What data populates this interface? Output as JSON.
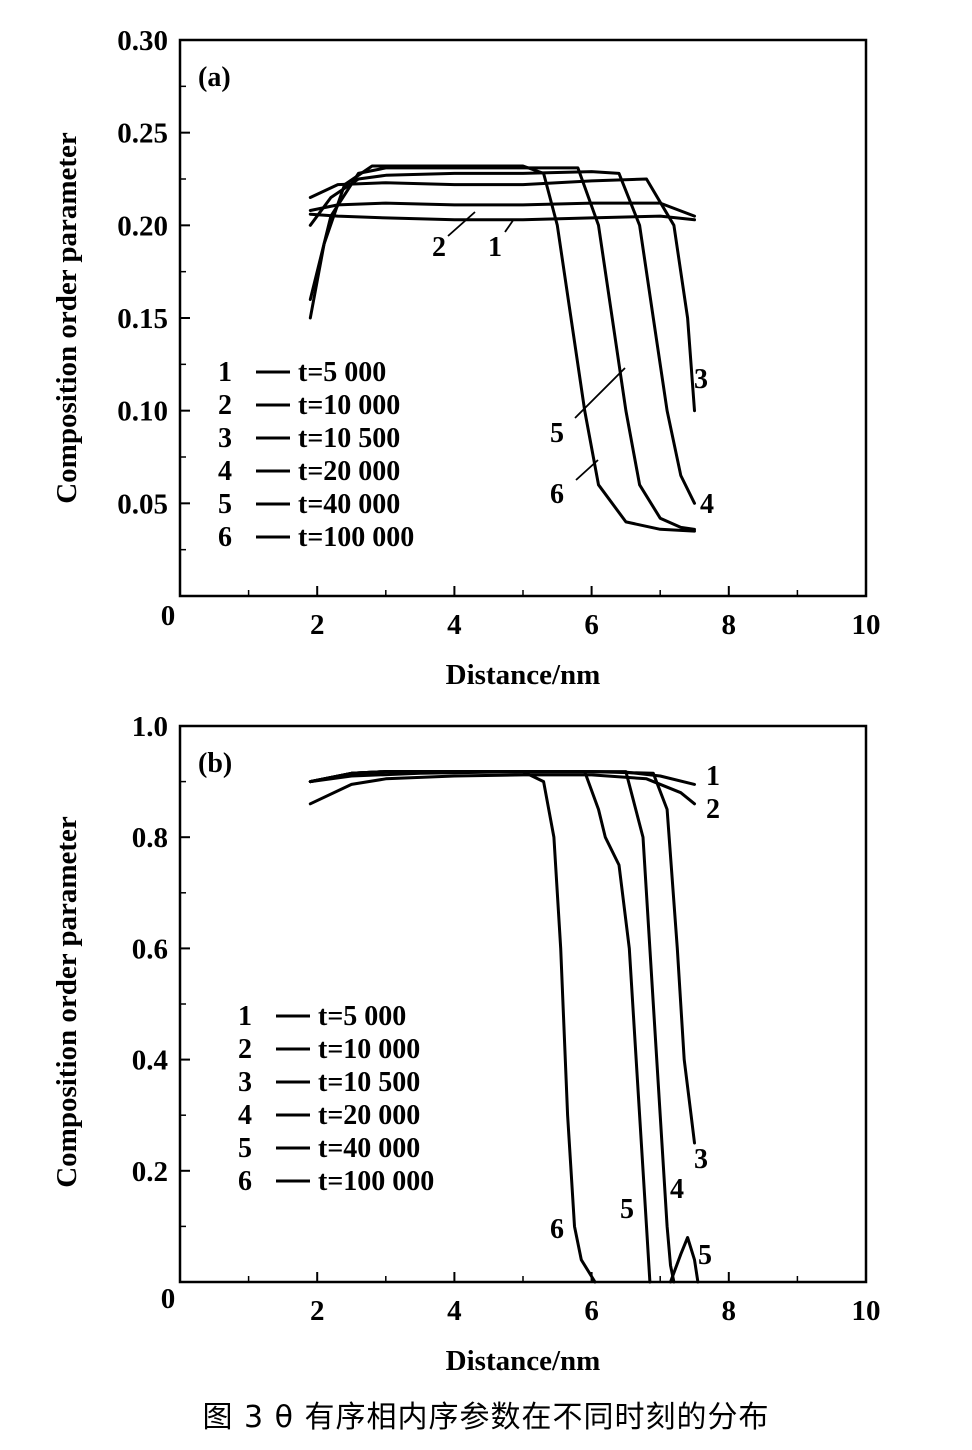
{
  "caption": "图 3    θ 有序相内序参数在不同时刻的分布",
  "chart_data": [
    {
      "type": "line",
      "panel_label": "(a)",
      "xlabel": "Distance/nm",
      "ylabel": "Composition order parameter",
      "xlim": [
        0,
        10
      ],
      "ylim": [
        0,
        0.3
      ],
      "xticks": [
        "0",
        "2",
        "4",
        "6",
        "8",
        "10"
      ],
      "yticks": [
        "0.30",
        "0.25",
        "0.20",
        "0.15",
        "0.10",
        "0.05"
      ],
      "legend_position": "lower-left",
      "legend": [
        {
          "num": "1",
          "text": "t=5 000"
        },
        {
          "num": "2",
          "text": "t=10 000"
        },
        {
          "num": "3",
          "text": "t=10 500"
        },
        {
          "num": "4",
          "text": "t=20 000"
        },
        {
          "num": "5",
          "text": "t=40 000"
        },
        {
          "num": "6",
          "text": "t=100 000"
        }
      ],
      "series": [
        {
          "name": "1",
          "x": [
            1.9,
            2.3,
            3,
            4,
            5,
            6,
            7,
            7.5
          ],
          "y": [
            0.206,
            0.205,
            0.204,
            0.203,
            0.203,
            0.204,
            0.205,
            0.203
          ]
        },
        {
          "name": "2",
          "x": [
            1.9,
            2.3,
            3,
            4,
            5,
            6,
            7,
            7.5
          ],
          "y": [
            0.208,
            0.211,
            0.212,
            0.211,
            0.211,
            0.212,
            0.212,
            0.205
          ]
        },
        {
          "name": "3",
          "x": [
            1.9,
            2.3,
            3,
            4,
            5,
            6,
            6.8,
            7.2,
            7.4,
            7.5
          ],
          "y": [
            0.215,
            0.222,
            0.223,
            0.222,
            0.222,
            0.224,
            0.225,
            0.2,
            0.15,
            0.1
          ]
        },
        {
          "name": "4",
          "x": [
            1.9,
            2.2,
            2.6,
            3,
            4,
            5,
            6,
            6.4,
            6.7,
            6.9,
            7.1,
            7.3,
            7.5
          ],
          "y": [
            0.2,
            0.215,
            0.225,
            0.227,
            0.228,
            0.228,
            0.229,
            0.228,
            0.2,
            0.15,
            0.1,
            0.065,
            0.05
          ]
        },
        {
          "name": "5",
          "x": [
            1.9,
            2.2,
            2.6,
            3,
            4,
            5,
            5.8,
            6.1,
            6.3,
            6.5,
            6.7,
            7,
            7.3,
            7.5
          ],
          "y": [
            0.16,
            0.205,
            0.228,
            0.231,
            0.231,
            0.231,
            0.231,
            0.2,
            0.15,
            0.1,
            0.06,
            0.042,
            0.037,
            0.036
          ]
        },
        {
          "name": "6",
          "x": [
            1.9,
            2.1,
            2.4,
            2.8,
            3.5,
            4,
            5,
            5.3,
            5.5,
            5.7,
            5.9,
            6.1,
            6.5,
            7,
            7.5
          ],
          "y": [
            0.15,
            0.19,
            0.222,
            0.232,
            0.232,
            0.232,
            0.232,
            0.228,
            0.2,
            0.15,
            0.1,
            0.06,
            0.04,
            0.036,
            0.035
          ]
        }
      ],
      "curve_labels": [
        "2",
        "1",
        "3",
        "5",
        "6",
        "4"
      ]
    },
    {
      "type": "line",
      "panel_label": "(b)",
      "xlabel": "Distance/nm",
      "ylabel": "Composition order parameter",
      "xlim": [
        0,
        10
      ],
      "ylim": [
        0,
        1.0
      ],
      "xticks": [
        "0",
        "2",
        "4",
        "6",
        "8",
        "10"
      ],
      "yticks": [
        "1.0",
        "0.8",
        "0.6",
        "0.4",
        "0.2"
      ],
      "legend_position": "lower-left",
      "legend": [
        {
          "num": "1",
          "text": "t=5 000"
        },
        {
          "num": "2",
          "text": "t=10 000"
        },
        {
          "num": "3",
          "text": "t=10 500"
        },
        {
          "num": "4",
          "text": "t=20 000"
        },
        {
          "num": "5",
          "text": "t=40 000"
        },
        {
          "num": "6",
          "text": "t=100 000"
        }
      ],
      "series": [
        {
          "name": "1",
          "x": [
            1.9,
            2.5,
            3.5,
            5,
            6,
            6.5,
            7,
            7.5
          ],
          "y": [
            0.9,
            0.91,
            0.915,
            0.918,
            0.918,
            0.917,
            0.91,
            0.895
          ]
        },
        {
          "name": "2",
          "x": [
            1.9,
            2.5,
            3,
            4,
            5,
            6,
            6.8,
            7.3,
            7.5
          ],
          "y": [
            0.86,
            0.895,
            0.905,
            0.91,
            0.912,
            0.912,
            0.905,
            0.88,
            0.86
          ]
        },
        {
          "name": "3",
          "x": [
            1.9,
            2.5,
            3,
            4,
            5,
            6,
            6.9,
            7.1,
            7.25,
            7.35,
            7.45,
            7.5
          ],
          "y": [
            0.9,
            0.915,
            0.918,
            0.918,
            0.918,
            0.918,
            0.915,
            0.85,
            0.6,
            0.4,
            0.3,
            0.25
          ]
        },
        {
          "name": "4",
          "x": [
            1.9,
            2.5,
            3,
            4,
            5,
            6,
            6.5,
            6.75,
            6.9,
            7.0,
            7.1,
            7.15,
            7.2
          ],
          "y": [
            0.9,
            0.915,
            0.918,
            0.918,
            0.918,
            0.918,
            0.918,
            0.8,
            0.5,
            0.3,
            0.1,
            0.03,
            0
          ]
        },
        {
          "name": "5",
          "x": [
            1.9,
            2.5,
            3,
            4,
            5,
            5.9,
            6.1,
            6.2,
            6.4,
            6.55,
            6.7,
            6.8,
            6.85
          ],
          "y": [
            0.9,
            0.915,
            0.918,
            0.918,
            0.918,
            0.918,
            0.85,
            0.8,
            0.75,
            0.6,
            0.3,
            0.1,
            0
          ]
        },
        {
          "name": "6",
          "x": [
            1.9,
            2.5,
            3,
            4,
            5,
            5.3,
            5.45,
            5.55,
            5.65,
            5.75,
            5.85,
            6.05
          ],
          "y": [
            0.9,
            0.915,
            0.918,
            0.918,
            0.918,
            0.9,
            0.8,
            0.6,
            0.3,
            0.1,
            0.04,
            0
          ]
        },
        {
          "name": "5",
          "x": [
            7.15,
            7.3,
            7.4,
            7.5,
            7.55
          ],
          "y": [
            0,
            0.05,
            0.08,
            0.04,
            0
          ]
        }
      ],
      "curve_labels": [
        "1",
        "2",
        "3",
        "4",
        "5",
        "6",
        "5"
      ]
    }
  ]
}
